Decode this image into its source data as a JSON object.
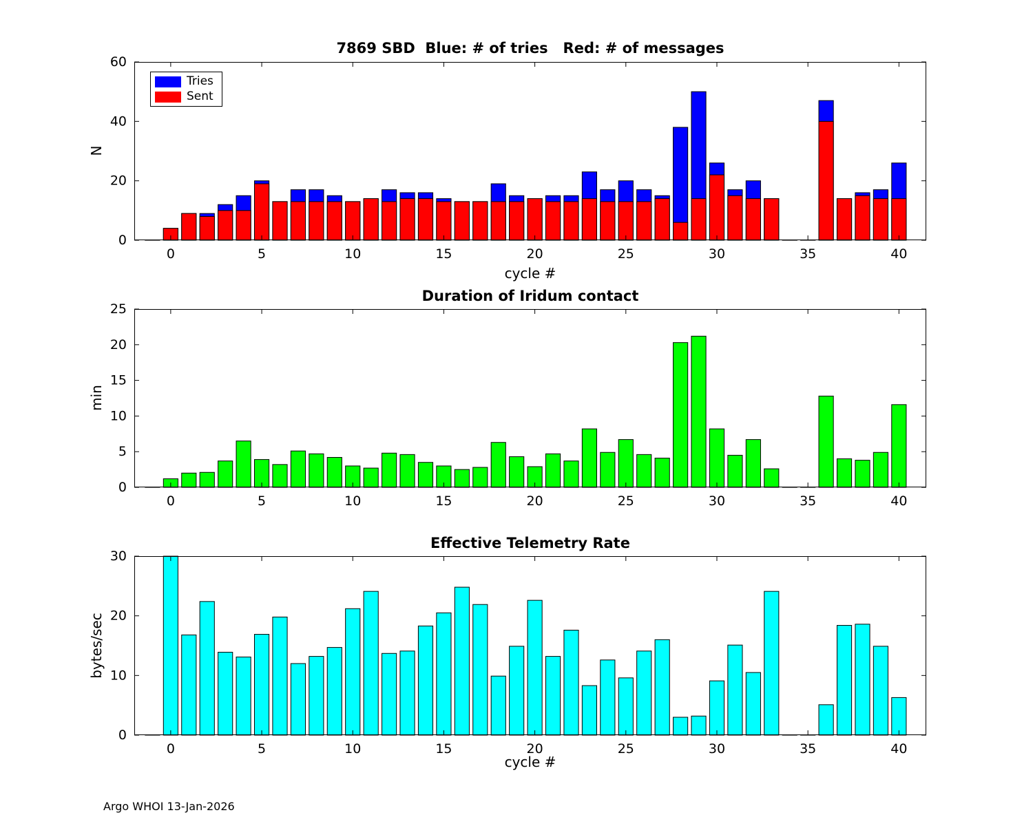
{
  "figure": {
    "footer": "Argo WHOI 13-Jan-2026",
    "background": "#ffffff",
    "axis_color": "#000000"
  },
  "legend": {
    "items": [
      {
        "label": "Tries",
        "color": "#0000ff"
      },
      {
        "label": "Sent",
        "color": "#ff0000"
      }
    ]
  },
  "chart_data": [
    {
      "type": "bar",
      "title": "7869 SBD  Blue: # of tries   Red: # of messages",
      "xlabel": "cycle #",
      "ylabel": "N",
      "xlim": [
        -2,
        41.5
      ],
      "ylim": [
        0,
        60
      ],
      "xticks": [
        0,
        5,
        10,
        15,
        20,
        25,
        30,
        35,
        40
      ],
      "yticks": [
        0,
        20,
        40,
        60
      ],
      "grid": false,
      "legend_position": "top-left",
      "x": [
        -1,
        0,
        1,
        2,
        3,
        4,
        5,
        6,
        7,
        8,
        9,
        10,
        11,
        12,
        13,
        14,
        15,
        16,
        17,
        18,
        19,
        20,
        21,
        22,
        23,
        24,
        25,
        26,
        27,
        28,
        29,
        30,
        31,
        32,
        33,
        34,
        35,
        36,
        37,
        38,
        39,
        40
      ],
      "series": [
        {
          "name": "Tries",
          "color": "#0000ff",
          "values": [
            0,
            4,
            9,
            9,
            12,
            15,
            20,
            13,
            17,
            17,
            15,
            13,
            14,
            17,
            16,
            16,
            14,
            13,
            13,
            19,
            15,
            14,
            15,
            15,
            23,
            17,
            20,
            17,
            15,
            38,
            50,
            26,
            17,
            20,
            14,
            0,
            0,
            47,
            14,
            16,
            17,
            26
          ]
        },
        {
          "name": "Sent",
          "color": "#ff0000",
          "values": [
            0,
            4,
            9,
            8,
            10,
            10,
            19,
            13,
            13,
            13,
            13,
            13,
            14,
            13,
            14,
            14,
            13,
            13,
            13,
            13,
            13,
            14,
            13,
            13,
            14,
            13,
            13,
            13,
            14,
            6,
            14,
            22,
            15,
            14,
            14,
            0,
            0,
            40,
            14,
            15,
            14,
            14
          ]
        }
      ]
    },
    {
      "type": "bar",
      "title": "Duration of Iridum contact",
      "xlabel": "",
      "ylabel": "min",
      "xlim": [
        -2,
        41.5
      ],
      "ylim": [
        0,
        25
      ],
      "xticks": [
        0,
        5,
        10,
        15,
        20,
        25,
        30,
        35,
        40
      ],
      "yticks": [
        0,
        5,
        10,
        15,
        20,
        25
      ],
      "grid": false,
      "x": [
        -1,
        0,
        1,
        2,
        3,
        4,
        5,
        6,
        7,
        8,
        9,
        10,
        11,
        12,
        13,
        14,
        15,
        16,
        17,
        18,
        19,
        20,
        21,
        22,
        23,
        24,
        25,
        26,
        27,
        28,
        29,
        30,
        31,
        32,
        33,
        34,
        35,
        36,
        37,
        38,
        39,
        40
      ],
      "series": [
        {
          "name": "Duration",
          "color": "#00ff00",
          "values": [
            0,
            1.2,
            2.0,
            2.1,
            3.7,
            6.5,
            3.9,
            3.2,
            5.1,
            4.7,
            4.2,
            3.0,
            2.7,
            4.8,
            4.6,
            3.5,
            3.0,
            2.5,
            2.8,
            6.3,
            4.3,
            2.9,
            4.7,
            3.7,
            8.2,
            4.9,
            6.7,
            4.6,
            4.1,
            20.3,
            21.2,
            8.2,
            4.5,
            6.7,
            2.6,
            0,
            0,
            12.8,
            4.0,
            3.8,
            4.9,
            11.6
          ]
        }
      ]
    },
    {
      "type": "bar",
      "title": "Effective Telemetry Rate",
      "xlabel": "cycle #",
      "ylabel": "bytes/sec",
      "xlim": [
        -2,
        41.5
      ],
      "ylim": [
        0,
        30
      ],
      "xticks": [
        0,
        5,
        10,
        15,
        20,
        25,
        30,
        35,
        40
      ],
      "yticks": [
        0,
        10,
        20,
        30
      ],
      "grid": false,
      "x": [
        -1,
        0,
        1,
        2,
        3,
        4,
        5,
        6,
        7,
        8,
        9,
        10,
        11,
        12,
        13,
        14,
        15,
        16,
        17,
        18,
        19,
        20,
        21,
        22,
        23,
        24,
        25,
        26,
        27,
        28,
        29,
        30,
        31,
        32,
        33,
        34,
        35,
        36,
        37,
        38,
        39,
        40
      ],
      "series": [
        {
          "name": "Rate",
          "color": "#00ffff",
          "values": [
            0,
            30.6,
            16.8,
            22.4,
            13.9,
            13.1,
            16.9,
            19.8,
            12.0,
            13.2,
            14.7,
            21.2,
            24.1,
            13.7,
            14.1,
            18.3,
            20.5,
            24.8,
            21.9,
            9.9,
            14.9,
            22.6,
            13.2,
            17.6,
            8.3,
            12.6,
            9.6,
            14.1,
            16.0,
            3.0,
            3.2,
            9.1,
            15.1,
            10.5,
            24.1,
            0,
            0,
            5.1,
            18.4,
            18.6,
            14.9,
            6.3
          ]
        }
      ]
    }
  ]
}
